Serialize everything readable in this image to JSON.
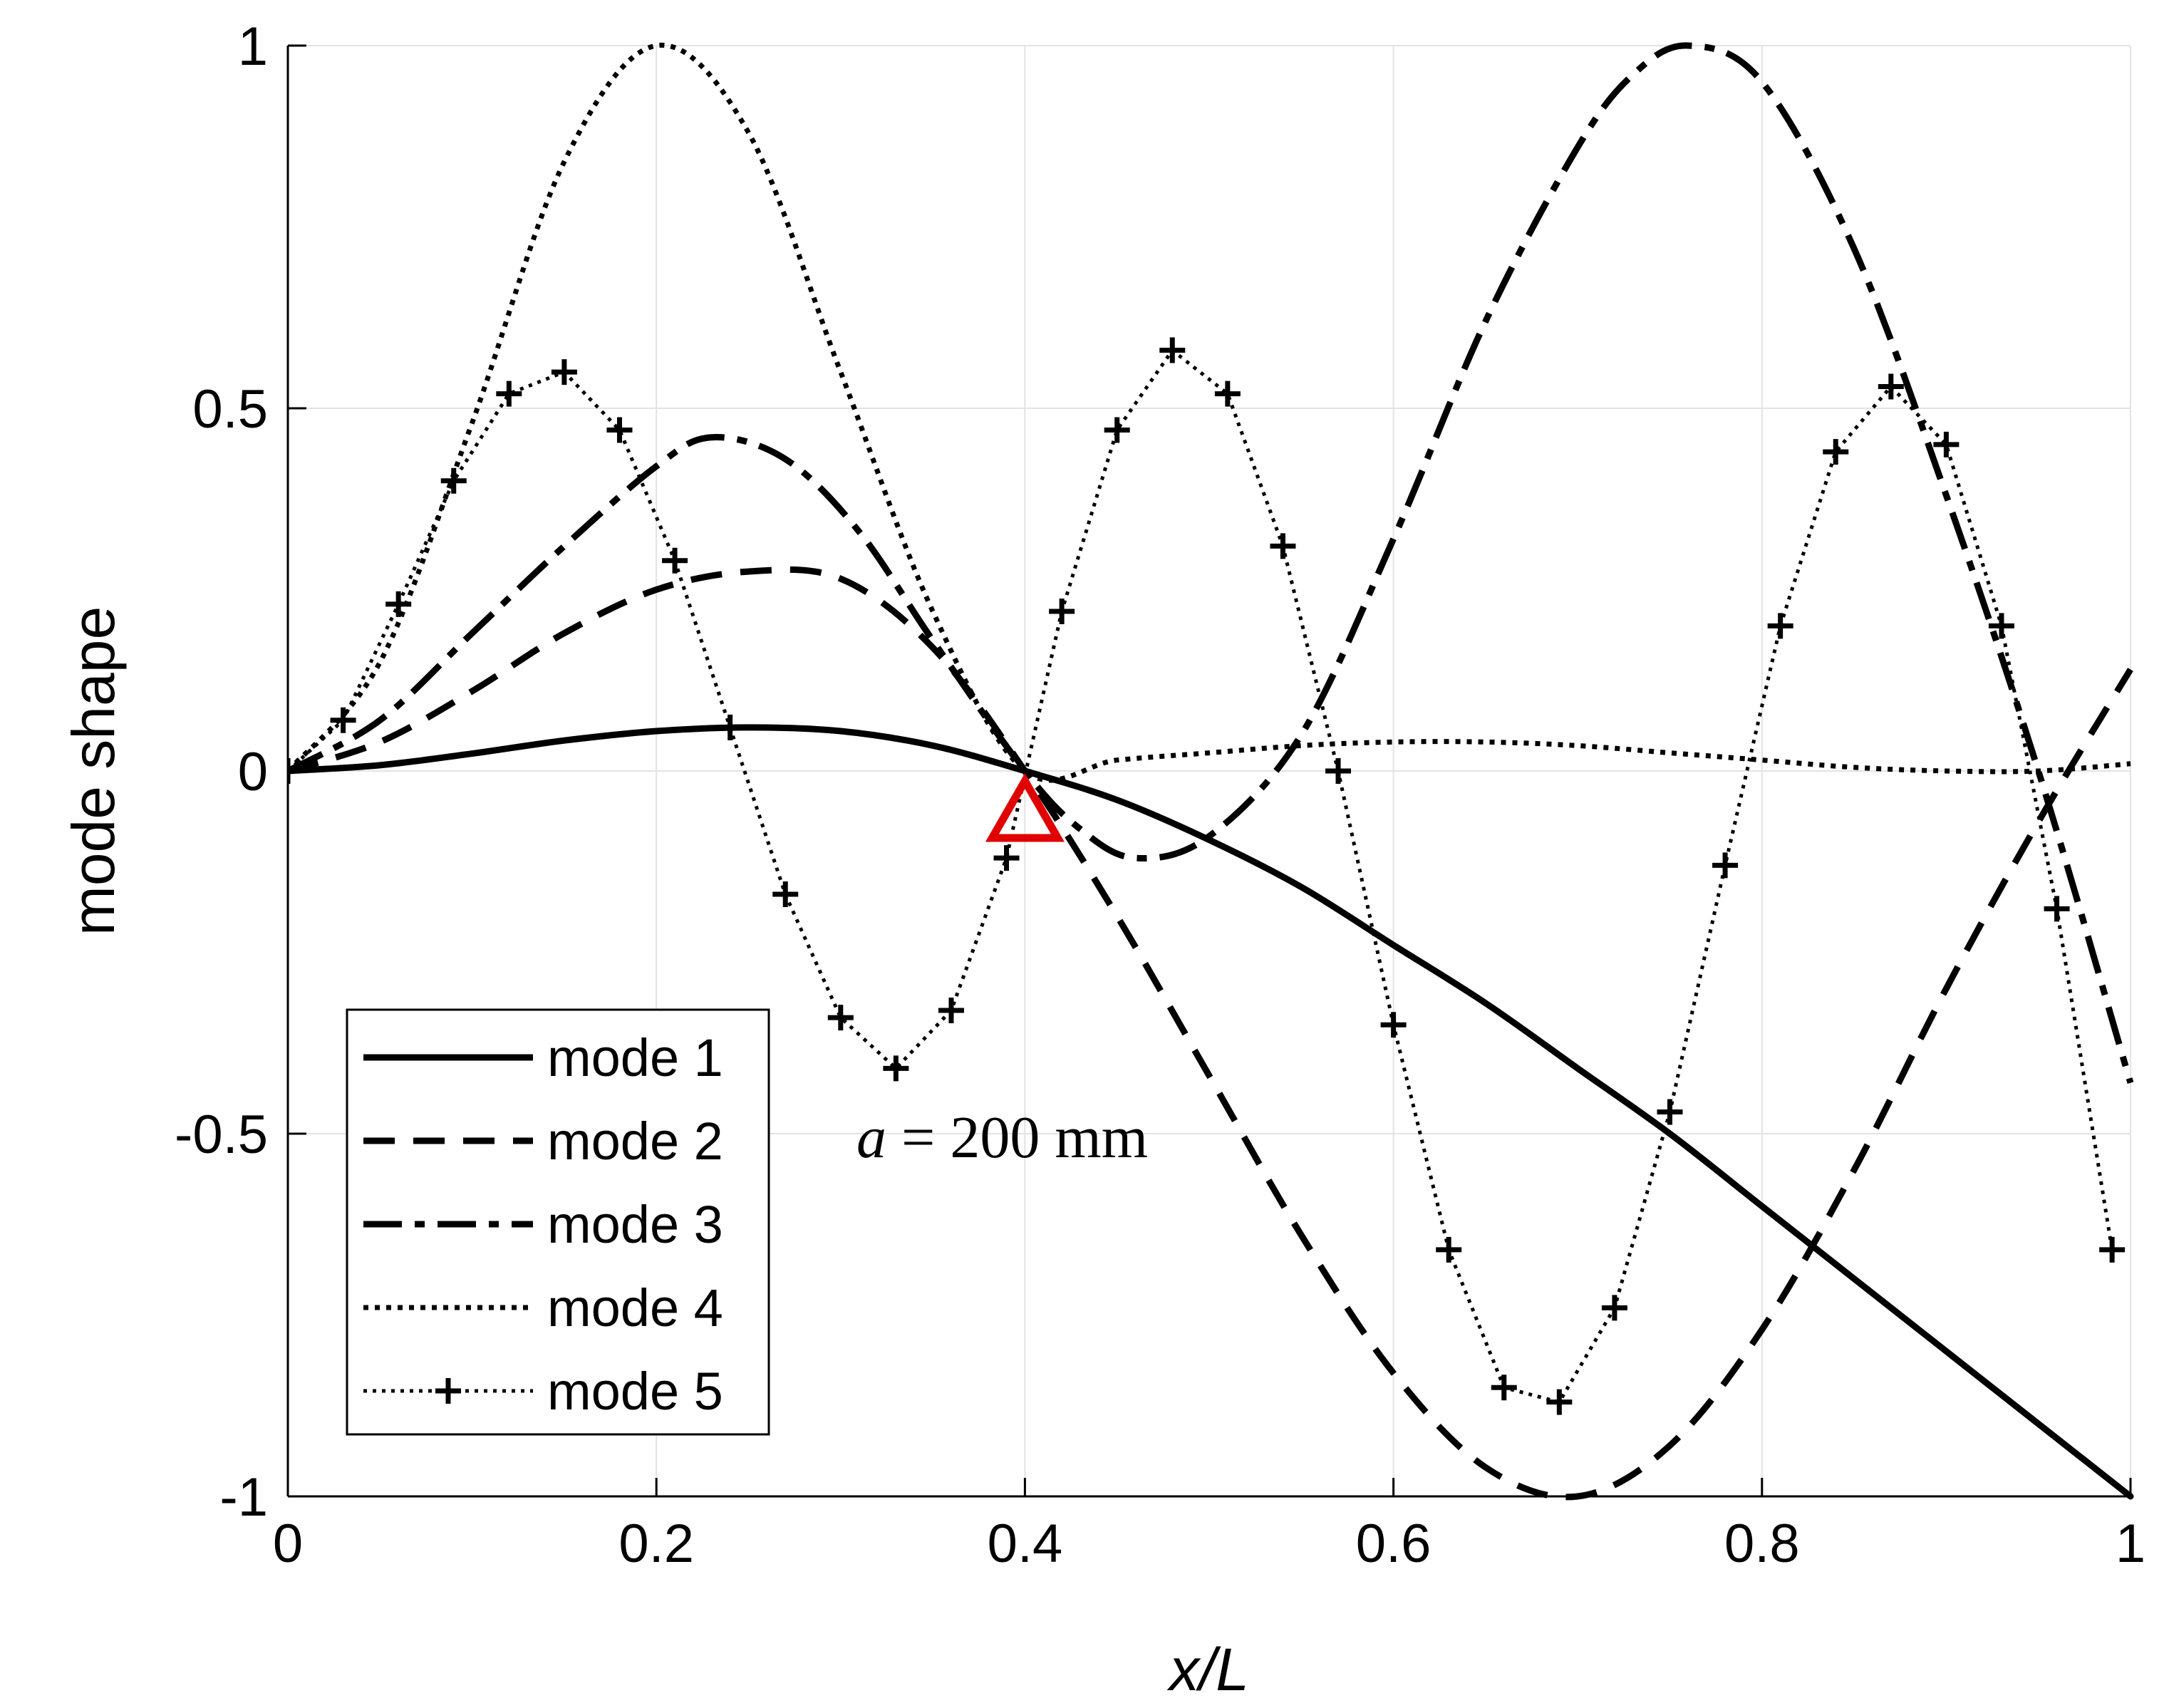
{
  "chart_data": {
    "type": "line",
    "title": "",
    "xlabel": "x/L",
    "ylabel": "mode shape",
    "xlim": [
      0,
      1
    ],
    "ylim": [
      -1,
      1
    ],
    "grid": true,
    "legend_position": "bottom-left",
    "x_ticks": [
      "0",
      "0.2",
      "0.4",
      "0.6",
      "0.8",
      "1"
    ],
    "x_tick_values": [
      0,
      0.2,
      0.4,
      0.6,
      0.8,
      1
    ],
    "y_ticks": [
      "-1",
      "-0.5",
      "0",
      "0.5",
      "1"
    ],
    "y_tick_values": [
      -1,
      -0.5,
      0,
      0.5,
      1
    ],
    "annotation": {
      "italic": "a",
      "text": " = 200 mm",
      "x": 0.39,
      "y": -0.505
    },
    "marker": {
      "x": 0.4,
      "y": -0.055,
      "shape": "triangle",
      "color": "#e00000"
    },
    "series": [
      {
        "name": "mode 1",
        "style": "solid",
        "x": [
          0,
          0.05,
          0.1,
          0.15,
          0.2,
          0.25,
          0.3,
          0.35,
          0.4,
          0.45,
          0.5,
          0.55,
          0.6,
          0.65,
          0.7,
          0.75,
          0.8,
          0.85,
          0.9,
          0.95,
          1.0
        ],
        "y": [
          0,
          0.008,
          0.024,
          0.042,
          0.055,
          0.06,
          0.055,
          0.035,
          0.0,
          -0.04,
          -0.095,
          -0.16,
          -0.24,
          -0.32,
          -0.41,
          -0.5,
          -0.6,
          -0.7,
          -0.8,
          -0.9,
          -1.0
        ]
      },
      {
        "name": "mode 2",
        "style": "dashed",
        "x": [
          0,
          0.05,
          0.1,
          0.15,
          0.2,
          0.25,
          0.3,
          0.35,
          0.4,
          0.45,
          0.5,
          0.55,
          0.6,
          0.65,
          0.7,
          0.75,
          0.8,
          0.85,
          0.9,
          0.95,
          1.0
        ],
        "y": [
          0,
          0.04,
          0.11,
          0.19,
          0.25,
          0.275,
          0.265,
          0.17,
          0.0,
          -0.2,
          -0.42,
          -0.64,
          -0.83,
          -0.96,
          -1.0,
          -0.93,
          -0.77,
          -0.55,
          -0.3,
          -0.07,
          0.14
        ]
      },
      {
        "name": "mode 3",
        "style": "dashdot",
        "x": [
          0,
          0.05,
          0.1,
          0.15,
          0.2,
          0.23,
          0.27,
          0.31,
          0.35,
          0.4,
          0.43,
          0.46,
          0.5,
          0.55,
          0.6,
          0.65,
          0.7,
          0.73,
          0.76,
          0.8,
          0.85,
          0.9,
          0.95,
          1.0
        ],
        "y": [
          0,
          0.07,
          0.19,
          0.31,
          0.42,
          0.46,
          0.43,
          0.33,
          0.18,
          0.0,
          -0.08,
          -0.12,
          -0.09,
          0.05,
          0.32,
          0.62,
          0.86,
          0.96,
          1.0,
          0.95,
          0.72,
          0.38,
          0.0,
          -0.43
        ]
      },
      {
        "name": "mode 4",
        "style": "dotted",
        "x": [
          0,
          0.05,
          0.1,
          0.15,
          0.2,
          0.25,
          0.3,
          0.35,
          0.4,
          0.45,
          0.5,
          0.55,
          0.6,
          0.65,
          0.7,
          0.75,
          0.8,
          0.85,
          0.9,
          0.95,
          1.0
        ],
        "y": [
          0,
          0.15,
          0.48,
          0.84,
          1.0,
          0.88,
          0.55,
          0.22,
          0.0,
          0.015,
          0.025,
          0.035,
          0.04,
          0.04,
          0.035,
          0.025,
          0.015,
          0.005,
          0.0,
          0.0,
          0.01
        ]
      },
      {
        "name": "mode 5",
        "style": "dotted-plus",
        "x": [
          0,
          0.03,
          0.06,
          0.09,
          0.12,
          0.15,
          0.18,
          0.21,
          0.24,
          0.27,
          0.3,
          0.33,
          0.36,
          0.39,
          0.42,
          0.45,
          0.48,
          0.51,
          0.54,
          0.57,
          0.6,
          0.63,
          0.66,
          0.69,
          0.72,
          0.75,
          0.78,
          0.81,
          0.84,
          0.87,
          0.9,
          0.93,
          0.96,
          0.99
        ],
        "y": [
          0,
          0.07,
          0.23,
          0.4,
          0.52,
          0.55,
          0.47,
          0.29,
          0.06,
          -0.17,
          -0.34,
          -0.41,
          -0.33,
          -0.12,
          0.22,
          0.47,
          0.58,
          0.52,
          0.31,
          0.0,
          -0.35,
          -0.66,
          -0.85,
          -0.87,
          -0.74,
          -0.47,
          -0.13,
          0.2,
          0.44,
          0.53,
          0.45,
          0.2,
          -0.19,
          -0.66
        ]
      }
    ]
  }
}
